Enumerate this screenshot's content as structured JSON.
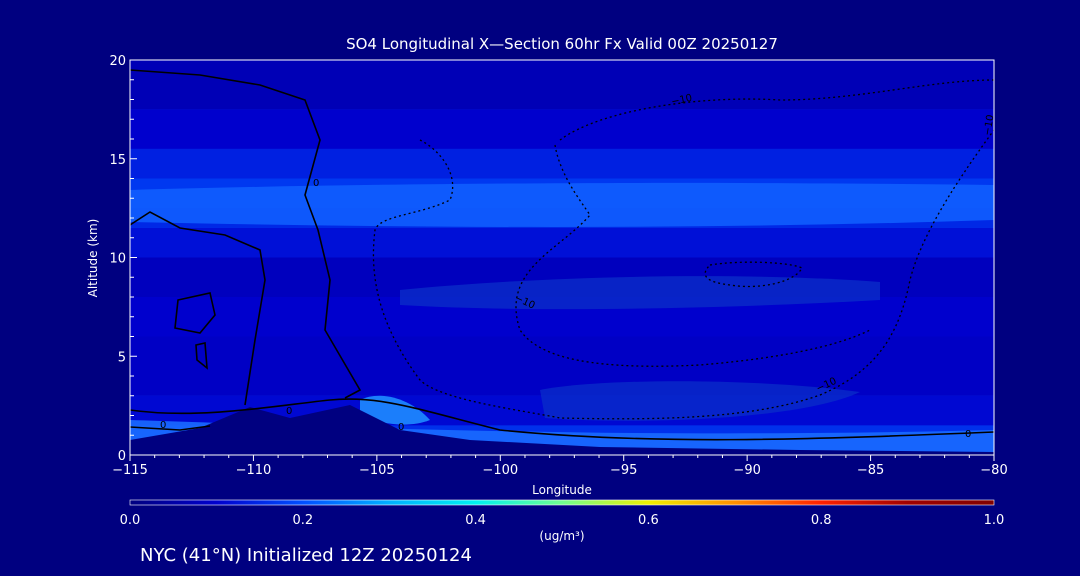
{
  "chart_data": {
    "type": "heatmap",
    "title": "SO4 Longitudinal X—Section 60hr  Fx Valid 00Z 20250127",
    "xlabel": "Longitude",
    "ylabel": "Altitude (km)",
    "xlim": [
      -115,
      -80
    ],
    "ylim": [
      0,
      20
    ],
    "x_ticks": [
      -115,
      -110,
      -105,
      -100,
      -95,
      -90,
      -85,
      -80
    ],
    "x_tick_labels": [
      "−115",
      "−110",
      "−105",
      "−100",
      "−95",
      "−90",
      "−85",
      "−80"
    ],
    "y_ticks": [
      0,
      5,
      10,
      15,
      20
    ],
    "y_tick_labels": [
      "0",
      "5",
      "10",
      "15",
      "20"
    ],
    "colorbar": {
      "label": "(ug/m³)",
      "range": [
        0.0,
        1.0
      ],
      "ticks": [
        0.0,
        0.2,
        0.4,
        0.6,
        0.8,
        1.0
      ],
      "tick_labels": [
        "0.0",
        "0.2",
        "0.4",
        "0.6",
        "0.8",
        "1.0"
      ],
      "colors": [
        "#000080",
        "#0000cd",
        "#0050ff",
        "#00b0ff",
        "#00f0f0",
        "#70ff90",
        "#f0f000",
        "#ff9000",
        "#ff2000",
        "#a00000",
        "#800000"
      ]
    },
    "bands": [
      {
        "alt": [
          0,
          1.5
        ],
        "conc": 0.16
      },
      {
        "alt": [
          1.5,
          3
        ],
        "conc": 0.11
      },
      {
        "alt": [
          3,
          6
        ],
        "conc": 0.09
      },
      {
        "alt": [
          6,
          8
        ],
        "conc": 0.1
      },
      {
        "alt": [
          8,
          10
        ],
        "conc": 0.08
      },
      {
        "alt": [
          10,
          11.5
        ],
        "conc": 0.12
      },
      {
        "alt": [
          11.5,
          12.5
        ],
        "conc": 0.15
      },
      {
        "alt": [
          12.5,
          14
        ],
        "conc": 0.17
      },
      {
        "alt": [
          14,
          15.5
        ],
        "conc": 0.14
      },
      {
        "alt": [
          15.5,
          17.5
        ],
        "conc": 0.1
      },
      {
        "alt": [
          17.5,
          20
        ],
        "conc": 0.07
      }
    ],
    "contour_labels": [
      "0",
      "0",
      "0",
      "0",
      "0",
      "−10",
      "−10",
      "−10",
      "−10"
    ]
  },
  "footer": {
    "location": "NYC (41°N) Initialized 12Z 20250124"
  }
}
